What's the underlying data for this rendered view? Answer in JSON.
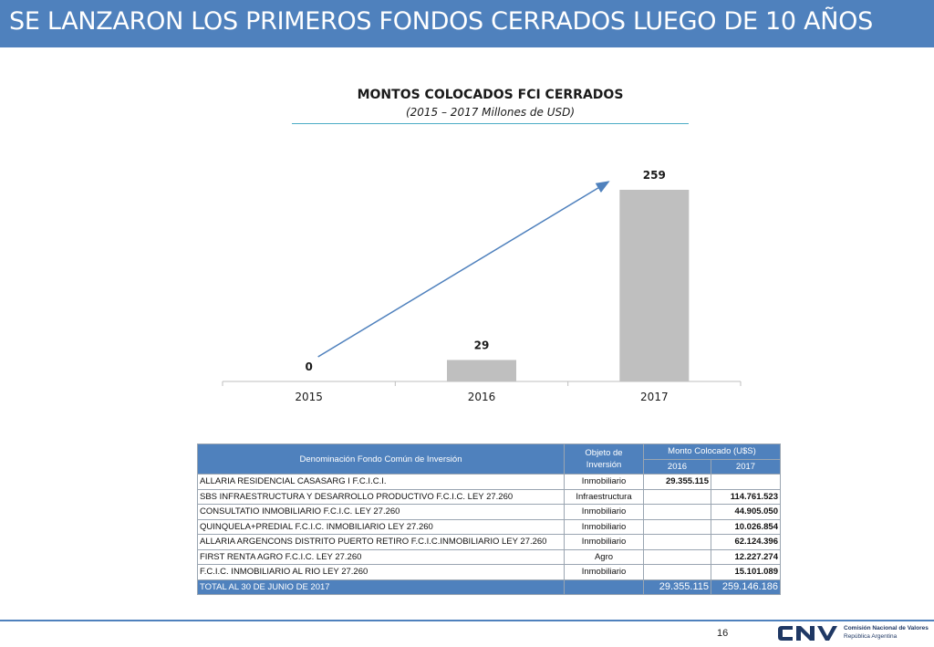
{
  "slide": {
    "title": "SE LANZARON LOS PRIMEROS FONDOS CERRADOS LUEGO DE 10 AÑOS",
    "page_number": "16"
  },
  "chart_data": {
    "type": "bar",
    "title": "MONTOS COLOCADOS FCI CERRADOS",
    "subtitle": "(2015 – 2017 Millones de USD)",
    "categories": [
      "2015",
      "2016",
      "2017"
    ],
    "values": [
      0,
      29,
      259
    ],
    "data_labels": [
      "0",
      "29",
      "259"
    ],
    "ylim": [
      0,
      259
    ],
    "grid": false,
    "bar_color": "#bfbfbf",
    "trend_arrow_color": "#4f81bd"
  },
  "table": {
    "headers": {
      "name": "Denominación Fondo Común de Inversión",
      "object": "Objeto de Inversión",
      "amount": "Monto Colocado (U$S)",
      "years": [
        "2016",
        "2017"
      ]
    },
    "rows": [
      {
        "name": "ALLARIA RESIDENCIAL CASASARG I F.C.I.C.I.",
        "object": "Inmobiliario",
        "y2016": "29.355.115",
        "y2017": ""
      },
      {
        "name": "SBS INFRAESTRUCTURA Y DESARROLLO PRODUCTIVO F.C.I.C. LEY 27.260",
        "object": "Infraestructura",
        "y2016": "",
        "y2017": "114.761.523"
      },
      {
        "name": "CONSULTATIO INMOBILIARIO F.C.I.C. LEY 27.260",
        "object": "Inmobiliario",
        "y2016": "",
        "y2017": "44.905.050"
      },
      {
        "name": "QUINQUELA+PREDIAL F.C.I.C. INMOBILIARIO LEY 27.260",
        "object": "Inmobiliario",
        "y2016": "",
        "y2017": "10.026.854"
      },
      {
        "name": "ALLARIA ARGENCONS DISTRITO PUERTO RETIRO F.C.I.C.INMOBILIARIO LEY 27.260",
        "object": "Inmobiliario",
        "y2016": "",
        "y2017": "62.124.396"
      },
      {
        "name": "FIRST RENTA AGRO F.C.I.C. LEY 27.260",
        "object": "Agro",
        "y2016": "",
        "y2017": "12.227.274"
      },
      {
        "name": "F.C.I.C. INMOBILIARIO AL RIO LEY 27.260",
        "object": "Inmobiliario",
        "y2016": "",
        "y2017": "15.101.089"
      }
    ],
    "total": {
      "label": "TOTAL AL 30 DE JUNIO DE 2017",
      "y2016": "29.355.115",
      "y2017": "259.146.186"
    }
  },
  "logo": {
    "name": "Comisión Nacional de Valores",
    "country": "República Argentina",
    "color": "#1f3864"
  }
}
